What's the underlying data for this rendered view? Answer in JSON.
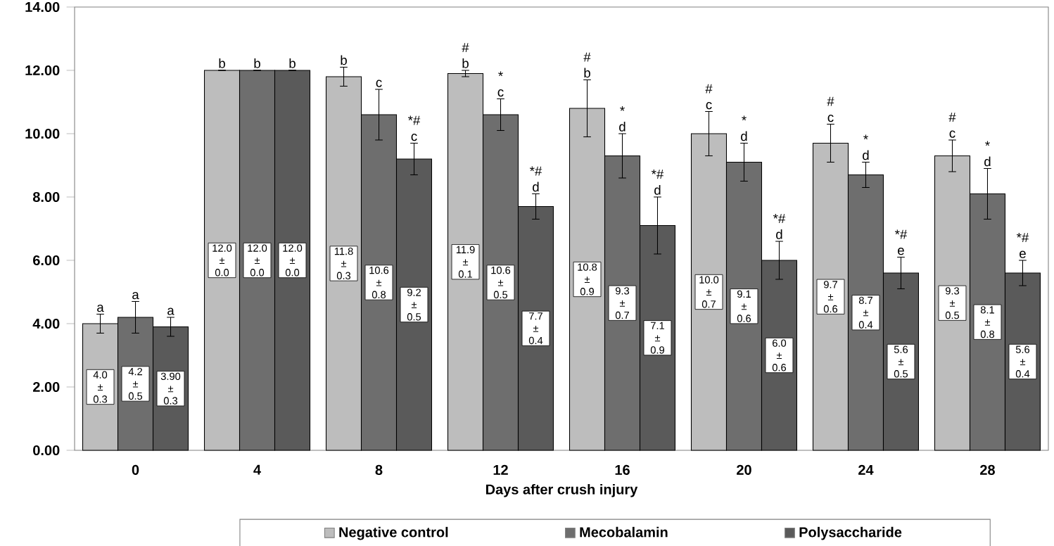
{
  "chart_data": {
    "type": "bar",
    "xlabel": "Days after crush injury",
    "categories": [
      "0",
      "4",
      "8",
      "12",
      "16",
      "20",
      "24",
      "28"
    ],
    "series": [
      {
        "name": "Negative control",
        "color": "#bdbdbd",
        "values": [
          4.0,
          12.0,
          11.8,
          11.9,
          10.8,
          10.0,
          9.7,
          9.3
        ],
        "errors": [
          0.3,
          0.0,
          0.3,
          0.1,
          0.9,
          0.7,
          0.6,
          0.5
        ],
        "value_labels": [
          "4.0 ± 0.3",
          "12.0 ± 0.0",
          "11.8 ± 0.3",
          "11.9 ± 0.1",
          "10.8 ± 0.9",
          "10.0 ± 0.7",
          "9.7 ± 0.6",
          "9.3 ± 0.5"
        ]
      },
      {
        "name": "Mecobalamin",
        "color": "#6e6e6e",
        "values": [
          4.2,
          12.0,
          10.6,
          10.6,
          9.3,
          9.1,
          8.7,
          8.1
        ],
        "errors": [
          0.5,
          0.0,
          0.8,
          0.5,
          0.7,
          0.6,
          0.4,
          0.8
        ],
        "value_labels": [
          "4.2 ± 0.5",
          "12.0 ± 0.0",
          "10.6 ± 0.8",
          "10.6 ± 0.5",
          "9.3 ± 0.7",
          "9.1 ± 0.6",
          "8.7 ± 0.4",
          "8.1 ± 0.8"
        ]
      },
      {
        "name": "Polysaccharide",
        "color": "#5a5a5a",
        "values": [
          3.9,
          12.0,
          9.2,
          7.7,
          7.1,
          6.0,
          5.6,
          5.6
        ],
        "errors": [
          0.3,
          0.0,
          0.5,
          0.4,
          0.9,
          0.6,
          0.5,
          0.4
        ],
        "value_labels": [
          "3.90 ± 0.3",
          "12.0 ± 0.0",
          "9.2 ± 0.5",
          "7.7 ± 0.4",
          "7.1 ± 0.9",
          "6.0 ± 0.6",
          "5.6 ± 0.5",
          "5.6 ± 0.4"
        ]
      }
    ],
    "annotations": [
      "a",
      "a",
      "a",
      "b",
      "b",
      "b",
      "b",
      "c",
      "*# c",
      "# b",
      "* c",
      "*# d",
      "# b",
      "* d",
      "*# d",
      "# c",
      "* d",
      "*# d",
      "# c",
      "* d",
      "*# e",
      "# c",
      "* d",
      "*# e"
    ],
    "ylim": [
      0,
      14
    ],
    "yticks": [
      {
        "value": 0,
        "label": "0.00"
      },
      {
        "value": 2,
        "label": "2.00"
      },
      {
        "value": 4,
        "label": "4.00"
      },
      {
        "value": 6,
        "label": "6.00"
      },
      {
        "value": 8,
        "label": "8.00"
      },
      {
        "value": 10,
        "label": "10.00"
      },
      {
        "value": 12,
        "label": "12.00"
      },
      {
        "value": 14,
        "label": "14.00"
      }
    ],
    "grid": false,
    "legend": "bottom"
  }
}
